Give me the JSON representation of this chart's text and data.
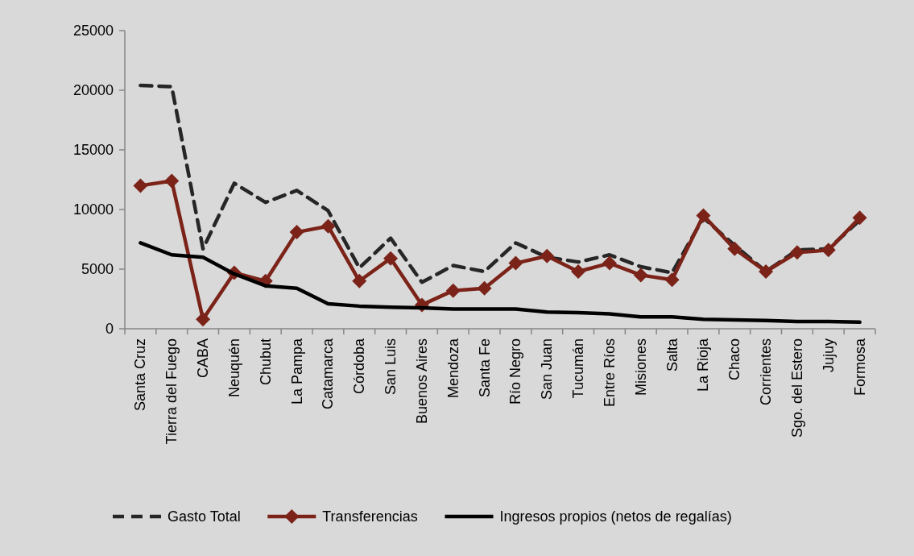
{
  "chart_data": {
    "type": "line",
    "categories": [
      "Santa Cruz",
      "Tierra del Fuego",
      "CABA",
      "Neuquén",
      "Chubut",
      "La Pampa",
      "Catamarca",
      "Córdoba",
      "San Luis",
      "Buenos Aires",
      "Mendoza",
      "Santa Fe",
      "Río Negro",
      "San Juan",
      "Tucumán",
      "Entre Ríos",
      "Misiones",
      "Salta",
      "La Rioja",
      "Chaco",
      "Corrientes",
      "Sgo. del Estero",
      "Jujuy",
      "Formosa"
    ],
    "series": [
      {
        "name": "Gasto Total",
        "color": "#262626",
        "line_style": "dashed",
        "marker": "none",
        "values": [
          20400,
          20300,
          6700,
          12200,
          10600,
          11600,
          9900,
          5100,
          7600,
          3900,
          5300,
          4800,
          7200,
          6000,
          5600,
          6200,
          5200,
          4700,
          9300,
          7000,
          4800,
          6600,
          6700,
          9100
        ]
      },
      {
        "name": "Transferencias",
        "color": "#7b2318",
        "line_style": "solid",
        "marker": "diamond",
        "values": [
          12000,
          12400,
          800,
          4700,
          4000,
          8100,
          8600,
          4000,
          5900,
          2000,
          3200,
          3400,
          5500,
          6100,
          4800,
          5500,
          4500,
          4100,
          9500,
          6700,
          4800,
          6400,
          6600,
          9300
        ]
      },
      {
        "name": "Ingresos propios (netos de regalías)",
        "color": "#000000",
        "line_style": "solid",
        "marker": "none",
        "values": [
          7200,
          6200,
          6000,
          4600,
          3600,
          3400,
          2100,
          1900,
          1800,
          1750,
          1650,
          1650,
          1650,
          1400,
          1350,
          1250,
          1000,
          1000,
          800,
          750,
          700,
          600,
          600,
          550
        ]
      }
    ],
    "ylim": [
      0,
      25000
    ],
    "yticks": [
      0,
      5000,
      10000,
      15000,
      20000,
      25000
    ],
    "grid": false,
    "legend": "bottom"
  }
}
